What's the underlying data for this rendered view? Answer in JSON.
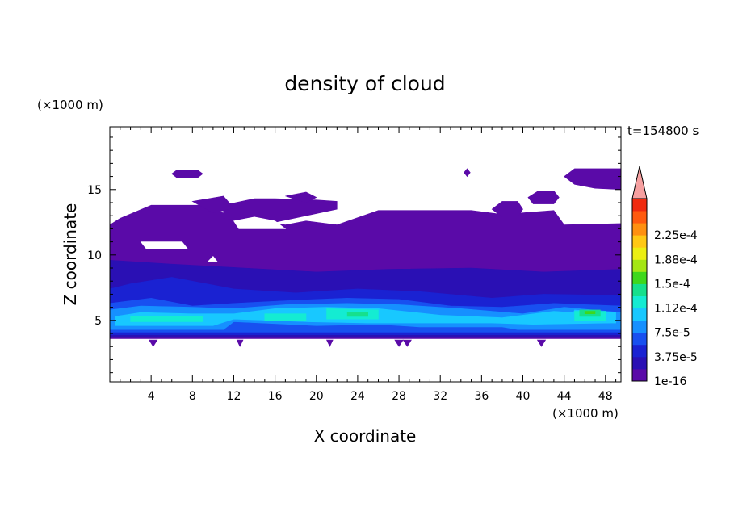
{
  "chart_data": {
    "type": "heatmap",
    "title": "density of cloud",
    "xlabel": "X coordinate",
    "ylabel": "Z coordinate",
    "x_unit": "(×1000 m)",
    "y_unit": "(×1000 m)",
    "time_label": "t=154800 s",
    "xlim": [
      0,
      49.5
    ],
    "ylim": [
      0.3,
      19.8
    ],
    "xticks": [
      "4",
      "8",
      "12",
      "16",
      "20",
      "24",
      "28",
      "32",
      "36",
      "40",
      "44",
      "48"
    ],
    "xtick_values": [
      4,
      8,
      12,
      16,
      20,
      24,
      28,
      32,
      36,
      40,
      44,
      48
    ],
    "yticks": [
      "5",
      "10",
      "15"
    ],
    "ytick_values": [
      5,
      10,
      15
    ],
    "colorbar": {
      "labels": [
        "1e-16",
        "3.75e-5",
        "7.5e-5",
        "1.12e-4",
        "1.5e-4",
        "1.88e-4",
        "2.25e-4"
      ],
      "colors": [
        "#5a0aa8",
        "#2a10b4",
        "#1a22d2",
        "#1850f0",
        "#1690ff",
        "#18c8ff",
        "#14ecd2",
        "#16e08c",
        "#3ed81c",
        "#a4e614",
        "#ecee12",
        "#ffc814",
        "#ff9010",
        "#ff5a0e",
        "#f02a0e"
      ],
      "extend_color": "#f6a0a0"
    },
    "layers": [
      {
        "level": 1,
        "polygon": [
          [
            0,
            3.6
          ],
          [
            49.5,
            3.6
          ],
          [
            49.5,
            12.4
          ],
          [
            44,
            12.3
          ],
          [
            43,
            13.4
          ],
          [
            38,
            13.1
          ],
          [
            35,
            13.4
          ],
          [
            26,
            13.4
          ],
          [
            22,
            12.3
          ],
          [
            19,
            12.6
          ],
          [
            17,
            12.3
          ],
          [
            14,
            12.6
          ],
          [
            11,
            13.2
          ],
          [
            9.5,
            13.8
          ],
          [
            4,
            13.8
          ],
          [
            1,
            12.8
          ],
          [
            0,
            12.3
          ]
        ]
      },
      {
        "level": 2,
        "polygon": [
          [
            0,
            3.7
          ],
          [
            49.5,
            3.7
          ],
          [
            49.5,
            8.9
          ],
          [
            42,
            8.7
          ],
          [
            35,
            9.0
          ],
          [
            27,
            8.9
          ],
          [
            20,
            8.7
          ],
          [
            13,
            9.0
          ],
          [
            6,
            9.3
          ],
          [
            0,
            9.6
          ]
        ]
      },
      {
        "level": 3,
        "polygon": [
          [
            0,
            3.9
          ],
          [
            49.5,
            3.9
          ],
          [
            49.5,
            6.9
          ],
          [
            42,
            7.0
          ],
          [
            37,
            6.7
          ],
          [
            30,
            7.2
          ],
          [
            24,
            7.4
          ],
          [
            18,
            7.1
          ],
          [
            12,
            7.4
          ],
          [
            6,
            8.3
          ],
          [
            2,
            7.8
          ],
          [
            0,
            7.4
          ]
        ]
      },
      {
        "level": 4,
        "polygon": [
          [
            0,
            4.1
          ],
          [
            49.5,
            4.1
          ],
          [
            49.5,
            6.1
          ],
          [
            43,
            6.3
          ],
          [
            38,
            6.0
          ],
          [
            33,
            6.1
          ],
          [
            28,
            6.6
          ],
          [
            23,
            6.7
          ],
          [
            17,
            6.5
          ],
          [
            12,
            6.3
          ],
          [
            8,
            6.1
          ],
          [
            4,
            6.7
          ],
          [
            0,
            6.3
          ]
        ]
      },
      {
        "level": 5,
        "polygon": [
          [
            0,
            4.3
          ],
          [
            11,
            4.3
          ],
          [
            12,
            4.9
          ],
          [
            20,
            4.6
          ],
          [
            26,
            4.7
          ],
          [
            30,
            4.5
          ],
          [
            38,
            4.5
          ],
          [
            39.5,
            4.3
          ],
          [
            49.5,
            4.3
          ],
          [
            49.5,
            5.6
          ],
          [
            44,
            6.0
          ],
          [
            40,
            5.5
          ],
          [
            34,
            5.9
          ],
          [
            28,
            6.2
          ],
          [
            23,
            6.3
          ],
          [
            17,
            6.2
          ],
          [
            12,
            5.9
          ],
          [
            8,
            6.0
          ],
          [
            3,
            6.1
          ],
          [
            0,
            5.8
          ]
        ]
      },
      {
        "level": 6,
        "polygon": [
          [
            0.5,
            4.6
          ],
          [
            10,
            4.6
          ],
          [
            12,
            5.1
          ],
          [
            19,
            4.9
          ],
          [
            25,
            4.8
          ],
          [
            30,
            4.8
          ],
          [
            37,
            4.8
          ],
          [
            41,
            4.7
          ],
          [
            48.5,
            4.8
          ],
          [
            48.5,
            5.4
          ],
          [
            43,
            5.7
          ],
          [
            38,
            5.2
          ],
          [
            32,
            5.4
          ],
          [
            26,
            5.9
          ],
          [
            21,
            6.0
          ],
          [
            16,
            5.9
          ],
          [
            12,
            5.5
          ],
          [
            8,
            5.5
          ],
          [
            3,
            5.6
          ],
          [
            0.5,
            5.3
          ]
        ]
      },
      {
        "level": 6,
        "polygon": [
          [
            44.5,
            4.8
          ],
          [
            49,
            4.8
          ],
          [
            49,
            5.6
          ],
          [
            45,
            5.8
          ]
        ]
      },
      {
        "level": 7,
        "polygon": [
          [
            2,
            4.9
          ],
          [
            9,
            4.9
          ],
          [
            9,
            5.3
          ],
          [
            2,
            5.3
          ]
        ]
      },
      {
        "level": 7,
        "polygon": [
          [
            15,
            5.0
          ],
          [
            19,
            5.0
          ],
          [
            19,
            5.5
          ],
          [
            15,
            5.5
          ]
        ]
      },
      {
        "level": 7,
        "polygon": [
          [
            21,
            5.1
          ],
          [
            26,
            5.1
          ],
          [
            26,
            5.8
          ],
          [
            21,
            5.9
          ]
        ]
      },
      {
        "level": 7,
        "polygon": [
          [
            45,
            5.0
          ],
          [
            48,
            5.0
          ],
          [
            48,
            5.7
          ],
          [
            45,
            5.7
          ]
        ]
      },
      {
        "level": 8,
        "polygon": [
          [
            23,
            5.3
          ],
          [
            25,
            5.3
          ],
          [
            25,
            5.6
          ],
          [
            23,
            5.6
          ]
        ]
      },
      {
        "level": 8,
        "polygon": [
          [
            45.5,
            5.3
          ],
          [
            47.5,
            5.3
          ],
          [
            47.5,
            5.8
          ],
          [
            45.5,
            5.8
          ]
        ]
      },
      {
        "level": 9,
        "polygon": [
          [
            46,
            5.5
          ],
          [
            47,
            5.5
          ],
          [
            47,
            5.7
          ],
          [
            46,
            5.7
          ]
        ]
      },
      {
        "level": 1,
        "polygon": [
          [
            6,
            16.2
          ],
          [
            6.5,
            16.5
          ],
          [
            8.5,
            16.5
          ],
          [
            9,
            16.2
          ],
          [
            8.5,
            15.9
          ],
          [
            6.5,
            15.9
          ]
        ]
      },
      {
        "level": 1,
        "polygon": [
          [
            34.3,
            16.3
          ],
          [
            34.6,
            16.6
          ],
          [
            34.9,
            16.3
          ],
          [
            34.6,
            16.0
          ]
        ]
      },
      {
        "level": 1,
        "polygon": [
          [
            44,
            16.0
          ],
          [
            45,
            16.6
          ],
          [
            49.5,
            16.6
          ],
          [
            49.5,
            15.0
          ],
          [
            47,
            15.1
          ],
          [
            45,
            15.4
          ]
        ]
      },
      {
        "level": 1,
        "polygon": [
          [
            40.5,
            14.4
          ],
          [
            41.5,
            14.9
          ],
          [
            43,
            14.9
          ],
          [
            43.5,
            14.4
          ],
          [
            43,
            13.9
          ],
          [
            41,
            13.9
          ]
        ]
      },
      {
        "level": 1,
        "polygon": [
          [
            37,
            13.5
          ],
          [
            38,
            14.1
          ],
          [
            39.5,
            14.1
          ],
          [
            40,
            13.5
          ],
          [
            39.5,
            12.9
          ],
          [
            38,
            12.9
          ]
        ]
      },
      {
        "level": 1,
        "polygon": [
          [
            11,
            13.8
          ],
          [
            14,
            14.3
          ],
          [
            16,
            14.3
          ],
          [
            20,
            14.2
          ],
          [
            22,
            14.1
          ],
          [
            22,
            13.5
          ],
          [
            19,
            13.0
          ],
          [
            16,
            12.5
          ],
          [
            13,
            12.6
          ],
          [
            11,
            12.8
          ]
        ]
      },
      {
        "level": 1,
        "polygon": [
          [
            8,
            14.1
          ],
          [
            11,
            14.5
          ],
          [
            12,
            13.6
          ],
          [
            10,
            13.2
          ]
        ]
      },
      {
        "level": 1,
        "polygon": [
          [
            17,
            14.5
          ],
          [
            19,
            14.8
          ],
          [
            20,
            14.4
          ],
          [
            19,
            14.0
          ]
        ]
      },
      {
        "level": 1,
        "polygon": [
          [
            3.8,
            3.5
          ],
          [
            4.2,
            3.0
          ],
          [
            4.6,
            3.5
          ]
        ]
      },
      {
        "level": 1,
        "polygon": [
          [
            12.3,
            3.5
          ],
          [
            12.6,
            3.0
          ],
          [
            12.9,
            3.5
          ]
        ]
      },
      {
        "level": 1,
        "polygon": [
          [
            21.0,
            3.5
          ],
          [
            21.3,
            3.0
          ],
          [
            21.6,
            3.5
          ]
        ]
      },
      {
        "level": 1,
        "polygon": [
          [
            27.6,
            3.5
          ],
          [
            28.0,
            3.0
          ],
          [
            28.4,
            3.5
          ]
        ]
      },
      {
        "level": 1,
        "polygon": [
          [
            28.4,
            3.5
          ],
          [
            28.8,
            3.0
          ],
          [
            29.2,
            3.5
          ]
        ]
      },
      {
        "level": 1,
        "polygon": [
          [
            41.4,
            3.5
          ],
          [
            41.8,
            3.0
          ],
          [
            42.2,
            3.5
          ]
        ]
      },
      {
        "level": 0,
        "polygon": [
          [
            3,
            11.0
          ],
          [
            7,
            11.0
          ],
          [
            7.5,
            10.5
          ],
          [
            3.5,
            10.5
          ],
          [
            3,
            11.0
          ]
        ]
      },
      {
        "level": 0,
        "polygon": [
          [
            12,
            12.6
          ],
          [
            14,
            12.9
          ],
          [
            16,
            12.6
          ],
          [
            17,
            12.0
          ],
          [
            14,
            12.0
          ],
          [
            12.5,
            12.0
          ]
        ]
      },
      {
        "level": 0,
        "polygon": [
          [
            9.5,
            9.5
          ],
          [
            10,
            9.9
          ],
          [
            10.4,
            9.5
          ]
        ]
      }
    ]
  }
}
